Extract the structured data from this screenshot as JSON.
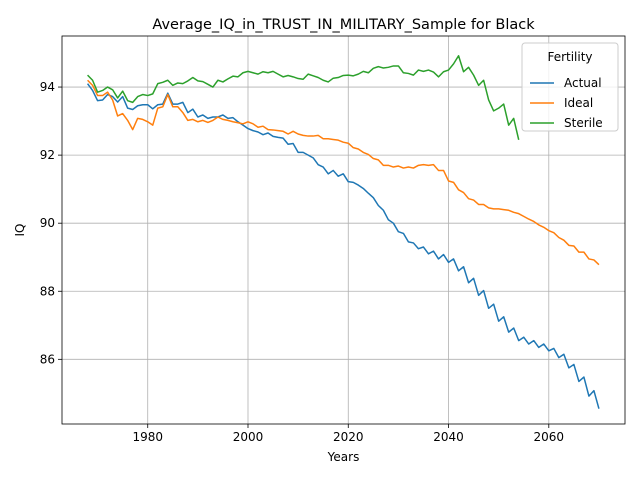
{
  "chart_data": {
    "type": "line",
    "title": "Average_IQ_in_TRUST_IN_MILITARY_Sample for Black",
    "xlabel": "Years",
    "ylabel": "IQ",
    "xlim": [
      1962.9,
      2075.2
    ],
    "ylim": [
      84.1,
      95.5
    ],
    "xticks": [
      1980,
      2000,
      2020,
      2040,
      2060
    ],
    "yticks": [
      86,
      88,
      90,
      92,
      94
    ],
    "grid": true,
    "legend": {
      "title": "Fertility",
      "placement": "top-right"
    },
    "series": [
      {
        "name": "Actual",
        "color": "#1f77b4",
        "x": [
          1968,
          1969,
          1970,
          1971,
          1972,
          1973,
          1974,
          1975,
          1976,
          1977,
          1978,
          1979,
          1980,
          1981,
          1982,
          1983,
          1984,
          1985,
          1986,
          1987,
          1988,
          1989,
          1990,
          1991,
          1992,
          1993,
          1994,
          1995,
          1996,
          1997,
          1998,
          1999,
          2000,
          2001,
          2002,
          2003,
          2004,
          2005,
          2006,
          2007,
          2008,
          2009,
          2010,
          2011,
          2012,
          2013,
          2014,
          2015,
          2016,
          2017,
          2018,
          2019,
          2020,
          2021,
          2022,
          2023,
          2024,
          2025,
          2026,
          2027,
          2028,
          2029,
          2030,
          2031,
          2032,
          2033,
          2034,
          2035,
          2036,
          2037,
          2038,
          2039,
          2040,
          2041,
          2042,
          2043,
          2044,
          2045,
          2046,
          2047,
          2048,
          2049,
          2050,
          2051,
          2052,
          2053,
          2054,
          2055,
          2056,
          2057,
          2058,
          2059,
          2060,
          2061,
          2062,
          2063,
          2064,
          2065,
          2066,
          2067,
          2068,
          2069,
          2070
        ],
        "y": [
          94.1,
          93.9,
          93.6,
          93.62,
          93.78,
          93.72,
          93.56,
          93.72,
          93.38,
          93.34,
          93.45,
          93.48,
          93.48,
          93.36,
          93.48,
          93.5,
          93.82,
          93.5,
          93.5,
          93.55,
          93.25,
          93.35,
          93.12,
          93.18,
          93.08,
          93.12,
          93.12,
          93.18,
          93.08,
          93.1,
          92.98,
          92.88,
          92.78,
          92.72,
          92.68,
          92.6,
          92.65,
          92.55,
          92.52,
          92.5,
          92.32,
          92.34,
          92.08,
          92.08,
          92.0,
          91.92,
          91.72,
          91.65,
          91.45,
          91.55,
          91.38,
          91.45,
          91.22,
          91.2,
          91.12,
          91.02,
          90.88,
          90.75,
          90.52,
          90.38,
          90.1,
          90.0,
          89.75,
          89.7,
          89.45,
          89.42,
          89.25,
          89.3,
          89.1,
          89.18,
          88.95,
          89.08,
          88.85,
          88.95,
          88.6,
          88.72,
          88.25,
          88.38,
          87.88,
          88.02,
          87.5,
          87.62,
          87.12,
          87.25,
          86.8,
          86.92,
          86.55,
          86.65,
          86.45,
          86.55,
          86.35,
          86.45,
          86.25,
          86.32,
          86.05,
          86.15,
          85.75,
          85.85,
          85.35,
          85.48,
          84.92,
          85.08,
          84.55
        ]
      },
      {
        "name": "Ideal",
        "color": "#ff7f0e",
        "x": [
          1968,
          1969,
          1970,
          1971,
          1972,
          1973,
          1974,
          1975,
          1976,
          1977,
          1978,
          1979,
          1980,
          1981,
          1982,
          1983,
          1984,
          1985,
          1986,
          1987,
          1988,
          1989,
          1990,
          1991,
          1992,
          1993,
          1994,
          1995,
          1996,
          1997,
          1998,
          1999,
          2000,
          2001,
          2002,
          2003,
          2004,
          2005,
          2006,
          2007,
          2008,
          2009,
          2010,
          2011,
          2012,
          2013,
          2014,
          2015,
          2016,
          2017,
          2018,
          2019,
          2020,
          2021,
          2022,
          2023,
          2024,
          2025,
          2026,
          2027,
          2028,
          2029,
          2030,
          2031,
          2032,
          2033,
          2034,
          2035,
          2036,
          2037,
          2038,
          2039,
          2040,
          2041,
          2042,
          2043,
          2044,
          2045,
          2046,
          2047,
          2048,
          2049,
          2050,
          2051,
          2052,
          2053,
          2054,
          2055,
          2056,
          2057,
          2058,
          2059,
          2060,
          2061,
          2062,
          2063,
          2064,
          2065,
          2066,
          2067,
          2068,
          2069,
          2070
        ],
        "y": [
          94.2,
          94.05,
          93.75,
          93.75,
          93.85,
          93.62,
          93.15,
          93.22,
          93.02,
          92.75,
          93.08,
          93.05,
          92.98,
          92.88,
          93.38,
          93.42,
          93.78,
          93.42,
          93.42,
          93.25,
          93.02,
          93.05,
          92.98,
          93.02,
          92.96,
          93.02,
          93.12,
          93.05,
          93.02,
          92.98,
          92.95,
          92.92,
          92.98,
          92.92,
          92.82,
          92.85,
          92.75,
          92.74,
          92.72,
          92.7,
          92.62,
          92.7,
          92.62,
          92.58,
          92.56,
          92.56,
          92.58,
          92.48,
          92.48,
          92.46,
          92.44,
          92.38,
          92.35,
          92.22,
          92.18,
          92.08,
          92.02,
          91.9,
          91.86,
          91.7,
          91.7,
          91.65,
          91.68,
          91.62,
          91.65,
          91.62,
          91.7,
          91.72,
          91.7,
          91.72,
          91.55,
          91.55,
          91.24,
          91.2,
          90.98,
          90.9,
          90.72,
          90.68,
          90.55,
          90.55,
          90.45,
          90.42,
          90.42,
          90.4,
          90.38,
          90.32,
          90.28,
          90.2,
          90.12,
          90.05,
          89.95,
          89.88,
          89.78,
          89.72,
          89.58,
          89.5,
          89.35,
          89.33,
          89.15,
          89.15,
          88.95,
          88.92,
          88.78
        ]
      },
      {
        "name": "Sterile",
        "color": "#2ca02c",
        "x": [
          1968,
          1969,
          1970,
          1971,
          1972,
          1973,
          1974,
          1975,
          1976,
          1977,
          1978,
          1979,
          1980,
          1981,
          1982,
          1983,
          1984,
          1985,
          1986,
          1987,
          1988,
          1989,
          1990,
          1991,
          1992,
          1993,
          1994,
          1995,
          1996,
          1997,
          1998,
          1999,
          2000,
          2001,
          2002,
          2003,
          2004,
          2005,
          2006,
          2007,
          2008,
          2009,
          2010,
          2011,
          2012,
          2013,
          2014,
          2015,
          2016,
          2017,
          2018,
          2019,
          2020,
          2021,
          2022,
          2023,
          2024,
          2025,
          2026,
          2027,
          2028,
          2029,
          2030,
          2031,
          2032,
          2033,
          2034,
          2035,
          2036,
          2037,
          2038,
          2039,
          2040,
          2041,
          2042,
          2043,
          2044,
          2045,
          2046,
          2047,
          2048,
          2049,
          2050,
          2051,
          2052,
          2053,
          2054
        ],
        "y": [
          94.35,
          94.2,
          93.85,
          93.9,
          94.0,
          93.92,
          93.68,
          93.88,
          93.6,
          93.55,
          93.72,
          93.78,
          93.75,
          93.8,
          94.1,
          94.14,
          94.2,
          94.05,
          94.12,
          94.1,
          94.18,
          94.28,
          94.18,
          94.16,
          94.08,
          94.0,
          94.2,
          94.15,
          94.24,
          94.32,
          94.3,
          94.42,
          94.46,
          94.42,
          94.38,
          94.45,
          94.42,
          94.46,
          94.38,
          94.3,
          94.34,
          94.3,
          94.25,
          94.23,
          94.38,
          94.33,
          94.28,
          94.2,
          94.15,
          94.26,
          94.28,
          94.34,
          94.35,
          94.33,
          94.38,
          94.46,
          94.42,
          94.55,
          94.6,
          94.56,
          94.58,
          94.62,
          94.62,
          94.42,
          94.4,
          94.35,
          94.5,
          94.46,
          94.5,
          94.44,
          94.3,
          94.45,
          94.5,
          94.68,
          94.92,
          94.45,
          94.58,
          94.35,
          94.05,
          94.2,
          93.62,
          93.3,
          93.38,
          93.5,
          92.88,
          93.08,
          92.45
        ]
      }
    ]
  }
}
